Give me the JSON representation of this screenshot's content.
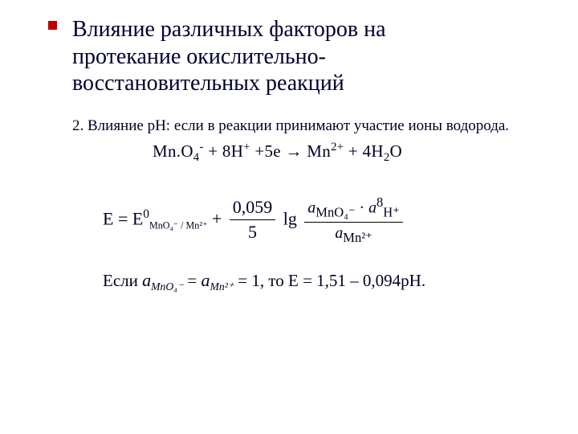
{
  "title_line1": "Влияние различных факторов на",
  "title_line2": "протекание окислительно-",
  "title_line3": "восстановительных реакций",
  "subtitle": "2. Влияние рН: если в реакции принимают участие ионы водорода.",
  "reaction": {
    "species1": "Mn.O",
    "s1_sub": "4",
    "s1_sup": "-",
    "plus1": " + 8H",
    "h_sup": "+",
    "plus2": " +5e → Mn",
    "mn_sup": "2+",
    "plus3": " + 4H",
    "h2o_sub": "2",
    "h2o_end": "O"
  },
  "nernst": {
    "E_eq": "E = E",
    "std_sup": "0",
    "pair_sub": "MnO₄⁻ / Mn²⁺",
    "plus": " + ",
    "const_num": "0,059",
    "const_den": "5",
    "lg": " lg ",
    "num_a1": "a",
    "num_a1_sub": "MnO₄⁻",
    "dot": " · ",
    "num_a2": "a",
    "num_a2_sub": "H⁺",
    "num_a2_sup": "8",
    "den_a": "a",
    "den_a_sub": "Mn²⁺"
  },
  "cond": {
    "if": "Если  ",
    "a1": "a",
    "a1_sub": "MnO₄⁻",
    "eq1": " = ",
    "a2": "a",
    "a2_sub": "Mn²⁺",
    "eq_one": " = 1, то E = 1,51 – 0,094pH."
  },
  "colors": {
    "bullet": "#c00000",
    "text": "#000030",
    "bg": "#ffffff"
  }
}
